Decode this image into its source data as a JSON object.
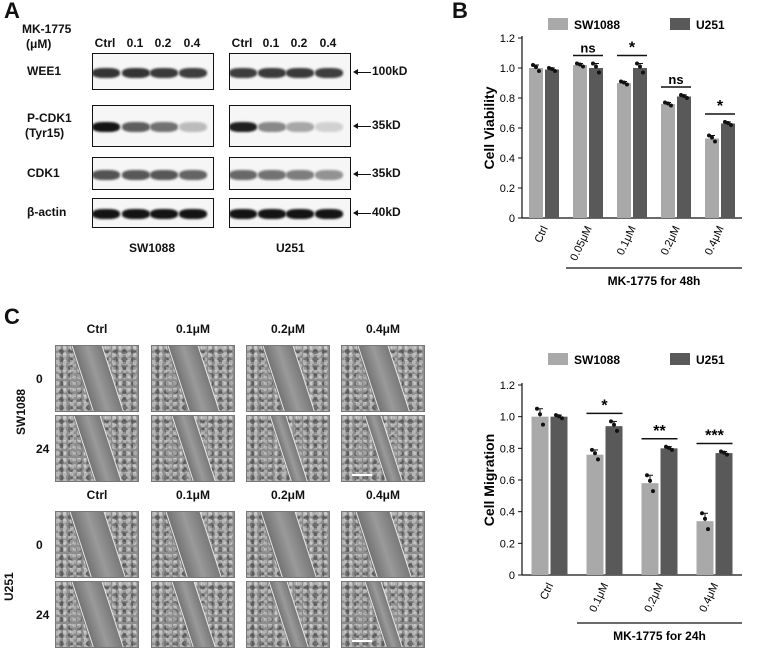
{
  "panels": {
    "a": "A",
    "b": "B",
    "c": "C"
  },
  "blot": {
    "header": [
      "MK-1775",
      "(μM)"
    ],
    "lanes": [
      "Ctrl",
      "0.1",
      "0.2",
      "0.4"
    ],
    "rows": [
      {
        "label": "WEE1",
        "label2": "",
        "marker": "100kD",
        "sw": [
          0.85,
          0.85,
          0.82,
          0.8
        ],
        "u": [
          0.8,
          0.82,
          0.82,
          0.8
        ]
      },
      {
        "label": "P-CDK1",
        "label2": "(Tyr15)",
        "marker": "35kD",
        "sw": [
          1.0,
          0.65,
          0.55,
          0.2
        ],
        "u": [
          0.95,
          0.45,
          0.3,
          0.1
        ]
      },
      {
        "label": "CDK1",
        "label2": "",
        "marker": "35kD",
        "sw": [
          0.7,
          0.68,
          0.68,
          0.62
        ],
        "u": [
          0.6,
          0.55,
          0.5,
          0.4
        ]
      },
      {
        "label": "β-actin",
        "label2": "",
        "marker": "40kD",
        "sw": [
          1.0,
          1.0,
          1.0,
          1.0
        ],
        "u": [
          1.0,
          1.0,
          1.0,
          1.0
        ]
      }
    ],
    "cells": [
      "SW1088",
      "U251"
    ]
  },
  "micro": {
    "cols": [
      "Ctrl",
      "0.1μM",
      "0.2μM",
      "0.4μM"
    ],
    "times": [
      "0",
      "24"
    ],
    "lines": [
      "SW1088",
      "U251"
    ]
  },
  "chart_data": [
    {
      "type": "bar",
      "ylabel": "Cell Viability",
      "xlabel": "MK-1775 for 48h",
      "categories": [
        "Ctrl",
        "0.05μM",
        "0.1μM",
        "0.2μM",
        "0.4μM"
      ],
      "ylim": [
        0,
        1.2
      ],
      "yticks": [
        "0",
        "0.2",
        "0.4",
        "0.6",
        "0.8",
        "1.0",
        "1.2"
      ],
      "series": [
        {
          "name": "SW1088",
          "color": "#a9a9a9",
          "values": [
            1.0,
            1.02,
            0.9,
            0.76,
            0.53
          ],
          "errors": [
            0.02,
            0.01,
            0.01,
            0.01,
            0.02
          ]
        },
        {
          "name": "U251",
          "color": "#595959",
          "values": [
            0.99,
            1.0,
            1.0,
            0.81,
            0.63
          ],
          "errors": [
            0.01,
            0.03,
            0.03,
            0.01,
            0.01
          ]
        }
      ],
      "significance": [
        "",
        "ns",
        "*",
        "ns",
        "*"
      ]
    },
    {
      "type": "bar",
      "ylabel": "Cell Migration",
      "xlabel": "MK-1775 for 24h",
      "categories": [
        "Ctrl",
        "0.1μM",
        "0.2μM",
        "0.4μM"
      ],
      "ylim": [
        0,
        1.2
      ],
      "yticks": [
        "0",
        "0.2",
        "0.4",
        "0.6",
        "0.8",
        "1.0",
        "1.2"
      ],
      "series": [
        {
          "name": "SW1088",
          "color": "#a9a9a9",
          "values": [
            1.0,
            0.76,
            0.58,
            0.34
          ],
          "errors": [
            0.05,
            0.03,
            0.05,
            0.05
          ]
        },
        {
          "name": "U251",
          "color": "#595959",
          "values": [
            1.0,
            0.94,
            0.8,
            0.77
          ],
          "errors": [
            0.01,
            0.03,
            0.01,
            0.01
          ]
        }
      ],
      "significance": [
        "",
        "*",
        "**",
        "***"
      ]
    }
  ]
}
